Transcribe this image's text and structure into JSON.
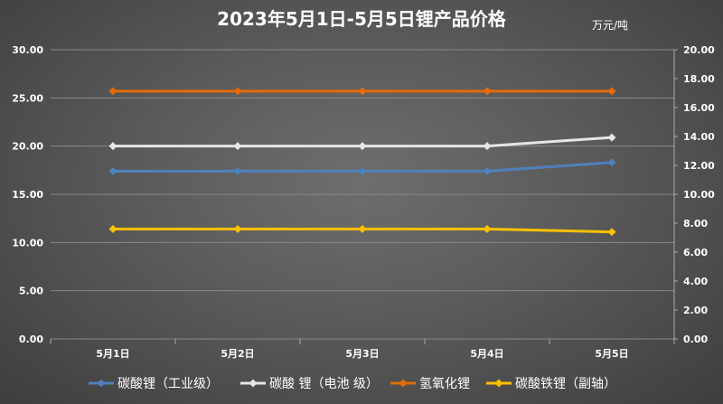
{
  "chart_data": {
    "type": "line",
    "title": "2023年5月1日-5月5日锂产品价格",
    "unit_label": "万元/吨",
    "categories": [
      "5月1日",
      "5月2日",
      "5月3日",
      "5月4日",
      "5月5日"
    ],
    "y_left": {
      "min": 0,
      "max": 30,
      "ticks": [
        "0.00",
        "5.00",
        "10.00",
        "15.00",
        "20.00",
        "25.00",
        "30.00"
      ]
    },
    "y_right": {
      "min": 0,
      "max": 20,
      "ticks": [
        "0.00",
        "2.00",
        "4.00",
        "6.00",
        "8.00",
        "10.00",
        "12.00",
        "14.00",
        "16.00",
        "18.00",
        "20.00"
      ]
    },
    "grid": true,
    "legend_position": "bottom",
    "series": [
      {
        "name": "碳酸锂（工业级）",
        "axis": "left",
        "color": "#4f81bd",
        "values": [
          17.4,
          17.4,
          17.4,
          17.4,
          18.3
        ]
      },
      {
        "name": "碳酸 锂（电池 级）",
        "axis": "left",
        "color": "#e6e6e6",
        "values": [
          20.0,
          20.0,
          20.0,
          20.0,
          20.9
        ]
      },
      {
        "name": "氢氧化锂",
        "axis": "left",
        "color": "#e36c09",
        "values": [
          25.7,
          25.7,
          25.7,
          25.7,
          25.7
        ]
      },
      {
        "name": "碳酸铁锂（副轴）",
        "axis": "right",
        "color": "#ffc000",
        "values": [
          7.6,
          7.6,
          7.6,
          7.6,
          7.4
        ]
      }
    ]
  }
}
